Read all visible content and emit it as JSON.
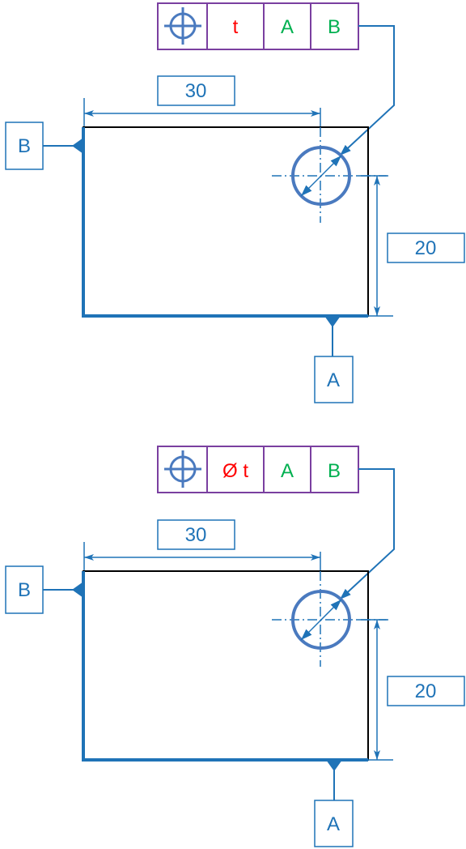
{
  "colors": {
    "dim_blue": "#1f73b7",
    "symbol_blue": "#4a7abf",
    "frame_purple": "#7a3fa0",
    "tolerance_red": "#ff0000",
    "datum_green": "#00b050",
    "part_black": "#000000"
  },
  "drawings": [
    {
      "fcf": {
        "symbol": "position-icon",
        "tolerance": "t",
        "primary_datum": "A",
        "secondary_datum": "B"
      },
      "dim_horizontal": "30",
      "dim_vertical": "20",
      "datum_left": "B",
      "datum_bottom": "A"
    },
    {
      "fcf": {
        "symbol": "position-icon",
        "tolerance": "Ø t",
        "primary_datum": "A",
        "secondary_datum": "B"
      },
      "dim_horizontal": "30",
      "dim_vertical": "20",
      "datum_left": "B",
      "datum_bottom": "A"
    }
  ]
}
